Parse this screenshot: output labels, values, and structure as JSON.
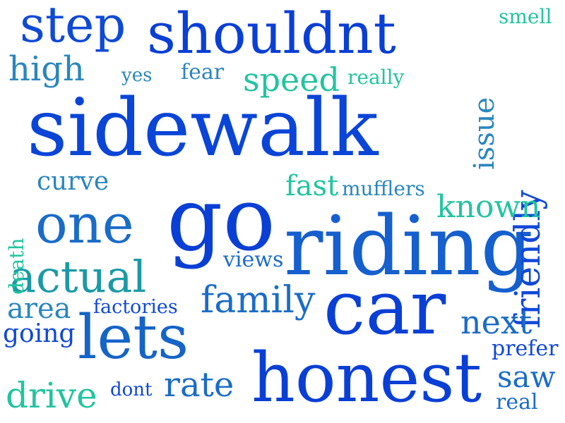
{
  "colors": {
    "blue": "#0a3fd6",
    "royal": "#1048d8",
    "azure": "#1a6cc8",
    "steel": "#2a86be",
    "teal": "#1aa7a0",
    "aqua": "#22c4a0",
    "mint": "#2ad89a"
  },
  "words": [
    {
      "key": "sidewalk",
      "text": "sidewalk"
    },
    {
      "key": "riding",
      "text": "riding"
    },
    {
      "key": "go",
      "text": "go"
    },
    {
      "key": "car",
      "text": "car"
    },
    {
      "key": "honest",
      "text": "honest"
    },
    {
      "key": "shouldnt",
      "text": "shouldnt"
    },
    {
      "key": "step",
      "text": "step"
    },
    {
      "key": "one",
      "text": "one"
    },
    {
      "key": "lets",
      "text": "lets"
    },
    {
      "key": "actual",
      "text": "actual"
    },
    {
      "key": "friendly",
      "text": "friendly"
    },
    {
      "key": "family",
      "text": "family"
    },
    {
      "key": "high",
      "text": "high"
    },
    {
      "key": "speed",
      "text": "speed"
    },
    {
      "key": "known",
      "text": "known"
    },
    {
      "key": "next",
      "text": "next"
    },
    {
      "key": "drive",
      "text": "drive"
    },
    {
      "key": "rate",
      "text": "rate"
    },
    {
      "key": "issue",
      "text": "issue"
    },
    {
      "key": "area",
      "text": "area"
    },
    {
      "key": "going",
      "text": "going"
    },
    {
      "key": "curve",
      "text": "curve"
    },
    {
      "key": "fast",
      "text": "fast"
    },
    {
      "key": "saw",
      "text": "saw"
    },
    {
      "key": "views",
      "text": "views"
    },
    {
      "key": "fear",
      "text": "fear"
    },
    {
      "key": "mufflers",
      "text": "mufflers"
    },
    {
      "key": "factories",
      "text": "factories"
    },
    {
      "key": "prefer",
      "text": "prefer"
    },
    {
      "key": "really",
      "text": "really"
    },
    {
      "key": "yes",
      "text": "yes"
    },
    {
      "key": "smell",
      "text": "smell"
    },
    {
      "key": "death",
      "text": "death"
    },
    {
      "key": "dont",
      "text": "dont"
    },
    {
      "key": "real",
      "text": "real"
    }
  ]
}
